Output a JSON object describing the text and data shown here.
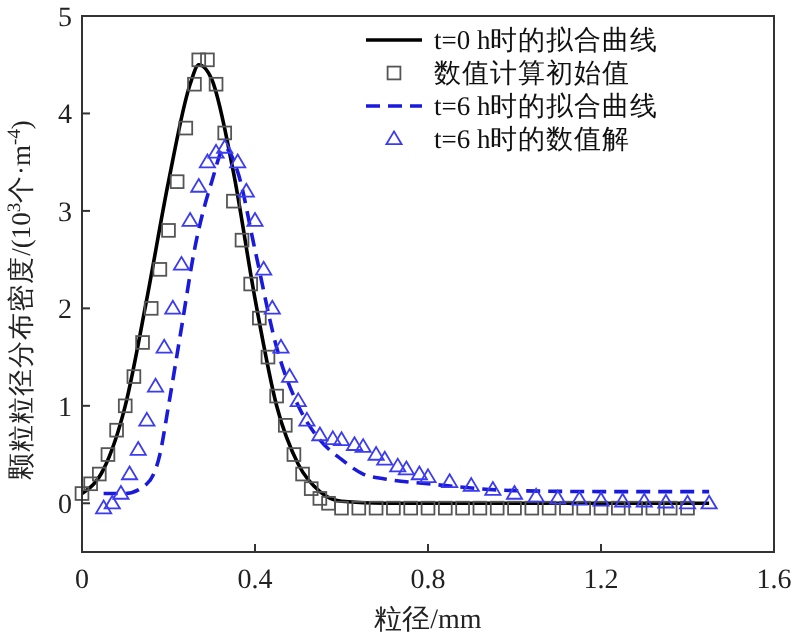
{
  "chart_data": {
    "type": "line",
    "xlabel": "粒径/mm",
    "ylabel": "颗粒粒径分布密度/(10$^{3}$个·m$^{-4}$)",
    "xlim": [
      0,
      1.6
    ],
    "xticks": [
      0,
      0.4,
      0.8,
      1.2,
      1.6
    ],
    "ylim": [
      -0.5,
      5
    ],
    "yticks": [
      0,
      1,
      2,
      3,
      4,
      5
    ],
    "grid": false,
    "legend": "top right",
    "series": [
      {
        "name": "t=0 h时的拟合曲线",
        "color": "#000000",
        "line_style": "solid",
        "marker": "none",
        "x": [
          0,
          0.05,
          0.1,
          0.15,
          0.2,
          0.25,
          0.27,
          0.3,
          0.35,
          0.4,
          0.45,
          0.5,
          0.55,
          0.6,
          0.7,
          1.0,
          1.45
        ],
        "values": [
          0.1,
          0.35,
          1.0,
          2.1,
          3.3,
          4.3,
          4.5,
          4.35,
          3.4,
          2.1,
          1.0,
          0.4,
          0.12,
          0.02,
          0,
          0,
          0
        ]
      },
      {
        "name": "数值计算初始值",
        "type": "scatter",
        "color": "#555555",
        "marker": "square",
        "x": [
          0,
          0.02,
          0.04,
          0.06,
          0.08,
          0.1,
          0.12,
          0.14,
          0.16,
          0.18,
          0.2,
          0.22,
          0.24,
          0.26,
          0.27,
          0.29,
          0.31,
          0.33,
          0.35,
          0.37,
          0.39,
          0.41,
          0.43,
          0.45,
          0.47,
          0.49,
          0.51,
          0.53,
          0.55,
          0.57,
          0.6,
          0.64,
          0.68,
          0.72,
          0.76,
          0.8,
          0.84,
          0.88,
          0.92,
          0.96,
          1.0,
          1.04,
          1.08,
          1.12,
          1.16,
          1.2,
          1.24,
          1.28,
          1.32,
          1.36,
          1.4
        ],
        "values": [
          0.1,
          0.2,
          0.3,
          0.5,
          0.75,
          1.0,
          1.3,
          1.65,
          2.0,
          2.4,
          2.8,
          3.3,
          3.85,
          4.3,
          4.55,
          4.55,
          4.3,
          3.8,
          3.1,
          2.7,
          2.25,
          1.9,
          1.5,
          1.1,
          0.8,
          0.5,
          0.3,
          0.15,
          0.05,
          0,
          -0.05,
          -0.05,
          -0.05,
          -0.05,
          -0.05,
          -0.05,
          -0.05,
          -0.05,
          -0.05,
          -0.05,
          -0.05,
          -0.05,
          -0.05,
          -0.05,
          -0.05,
          -0.05,
          -0.05,
          -0.05,
          -0.05,
          -0.05,
          -0.05
        ]
      },
      {
        "name": "t=6 h时的拟合曲线",
        "color": "#1a1adc",
        "line_style": "dashed",
        "marker": "none",
        "x": [
          0.05,
          0.1,
          0.15,
          0.18,
          0.2,
          0.23,
          0.26,
          0.3,
          0.33,
          0.36,
          0.4,
          0.45,
          0.5,
          0.55,
          0.6,
          0.65,
          0.7,
          0.8,
          1.0,
          1.2,
          1.45
        ],
        "values": [
          0.1,
          0.1,
          0.2,
          0.5,
          1.0,
          1.8,
          2.6,
          3.3,
          3.65,
          3.4,
          2.6,
          1.6,
          1.0,
          0.65,
          0.45,
          0.3,
          0.25,
          0.2,
          0.13,
          0.12,
          0.12
        ]
      },
      {
        "name": "t=6 h时的数值解",
        "type": "scatter",
        "color": "#3b3bf0",
        "marker": "triangle",
        "x": [
          0.05,
          0.07,
          0.09,
          0.11,
          0.13,
          0.15,
          0.17,
          0.19,
          0.21,
          0.23,
          0.25,
          0.27,
          0.29,
          0.31,
          0.33,
          0.36,
          0.38,
          0.4,
          0.42,
          0.44,
          0.46,
          0.48,
          0.5,
          0.52,
          0.55,
          0.58,
          0.6,
          0.63,
          0.65,
          0.68,
          0.7,
          0.73,
          0.75,
          0.78,
          0.8,
          0.85,
          0.9,
          0.95,
          1.0,
          1.05,
          1.1,
          1.15,
          1.2,
          1.25,
          1.3,
          1.35,
          1.4,
          1.45
        ],
        "values": [
          -0.05,
          0,
          0.1,
          0.3,
          0.55,
          0.85,
          1.2,
          1.6,
          2.0,
          2.45,
          2.9,
          3.25,
          3.5,
          3.6,
          3.65,
          3.5,
          3.2,
          2.9,
          2.4,
          2.0,
          1.6,
          1.3,
          1.05,
          0.85,
          0.7,
          0.66,
          0.65,
          0.6,
          0.58,
          0.5,
          0.45,
          0.38,
          0.35,
          0.3,
          0.27,
          0.22,
          0.18,
          0.14,
          0.1,
          0.07,
          0.05,
          0.04,
          0.03,
          0.02,
          0.02,
          0.01,
          0.0,
          0.0
        ]
      }
    ]
  }
}
